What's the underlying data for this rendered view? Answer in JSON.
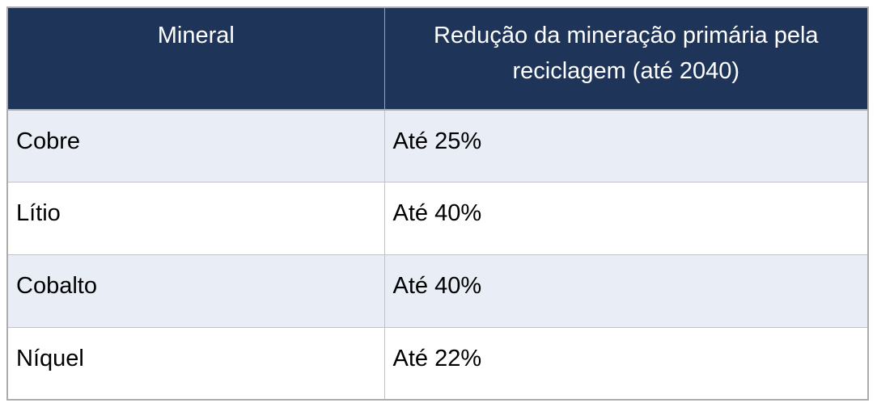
{
  "chart_data": {
    "type": "table",
    "title": "",
    "columns": [
      "Mineral",
      "Redução da mineração primária pela reciclagem (até 2040)"
    ],
    "rows": [
      [
        "Cobre",
        "Até 25%"
      ],
      [
        "Lítio",
        "Até 40%"
      ],
      [
        "Cobalto",
        "Até 40%"
      ],
      [
        "Níquel",
        "Até 22%"
      ]
    ]
  },
  "table": {
    "headers": {
      "mineral": "Mineral",
      "reduction": "Redução da mineração primária pela reciclagem (até 2040)"
    },
    "rows": [
      {
        "mineral": "Cobre",
        "reduction": "Até 25%"
      },
      {
        "mineral": "Lítio",
        "reduction": "Até 40%"
      },
      {
        "mineral": "Cobalto",
        "reduction": "Até 40%"
      },
      {
        "mineral": "Níquel",
        "reduction": "Até 22%"
      }
    ]
  },
  "colors": {
    "header_bg": "#1F3459",
    "header_text": "#FFFFFF",
    "row_alt_bg": "#E8EDF6",
    "row_bg": "#FFFFFF",
    "body_text": "#000000",
    "outer_border": "#ACACAC",
    "inner_border": "#C2C2C2"
  }
}
